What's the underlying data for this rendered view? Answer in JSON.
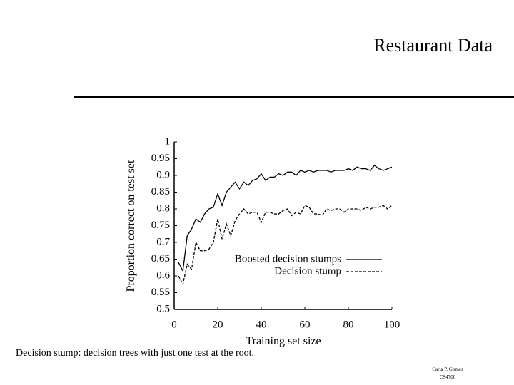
{
  "slide": {
    "title": "Restaurant Data",
    "caption": "Decision stump: decision trees with just one test at the root.",
    "footer": [
      "Carla P. Gomes",
      "CS4700"
    ]
  },
  "chart_data": {
    "type": "line",
    "x_label": "Training set size",
    "y_label": "Proportion correct on test set",
    "x": [
      2,
      4,
      6,
      8,
      10,
      12,
      14,
      16,
      18,
      20,
      22,
      24,
      26,
      28,
      30,
      32,
      34,
      36,
      38,
      40,
      42,
      44,
      46,
      48,
      50,
      52,
      54,
      56,
      58,
      60,
      62,
      64,
      66,
      68,
      70,
      72,
      74,
      76,
      78,
      80,
      82,
      84,
      86,
      88,
      90,
      92,
      94,
      96,
      98,
      100
    ],
    "series": [
      {
        "name": "Boosted decision stumps",
        "color": "#000000",
        "line_style": "solid",
        "values": [
          0.64,
          0.615,
          0.72,
          0.74,
          0.77,
          0.76,
          0.785,
          0.8,
          0.805,
          0.845,
          0.81,
          0.85,
          0.865,
          0.88,
          0.86,
          0.88,
          0.87,
          0.885,
          0.89,
          0.905,
          0.885,
          0.895,
          0.895,
          0.905,
          0.9,
          0.91,
          0.91,
          0.9,
          0.915,
          0.91,
          0.915,
          0.91,
          0.915,
          0.915,
          0.915,
          0.91,
          0.915,
          0.915,
          0.915,
          0.92,
          0.915,
          0.925,
          0.92,
          0.92,
          0.915,
          0.93,
          0.92,
          0.915,
          0.92,
          0.925
        ]
      },
      {
        "name": "Decision stump",
        "color": "#000000",
        "line_style": "dashed",
        "values": [
          0.6,
          0.575,
          0.635,
          0.62,
          0.7,
          0.675,
          0.675,
          0.68,
          0.7,
          0.77,
          0.71,
          0.755,
          0.72,
          0.765,
          0.785,
          0.8,
          0.785,
          0.79,
          0.79,
          0.76,
          0.79,
          0.79,
          0.785,
          0.785,
          0.795,
          0.8,
          0.78,
          0.79,
          0.785,
          0.81,
          0.805,
          0.785,
          0.785,
          0.78,
          0.8,
          0.795,
          0.8,
          0.8,
          0.79,
          0.8,
          0.8,
          0.8,
          0.795,
          0.805,
          0.8,
          0.805,
          0.805,
          0.81,
          0.8,
          0.81
        ]
      }
    ],
    "xlim": [
      0,
      100
    ],
    "xticks": [
      0,
      20,
      40,
      60,
      80,
      100
    ],
    "ylim": [
      0.5,
      1
    ],
    "yticks": [
      0.5,
      0.55,
      0.6,
      0.65,
      0.7,
      0.75,
      0.8,
      0.85,
      0.9,
      0.95,
      1
    ],
    "grid": false
  }
}
